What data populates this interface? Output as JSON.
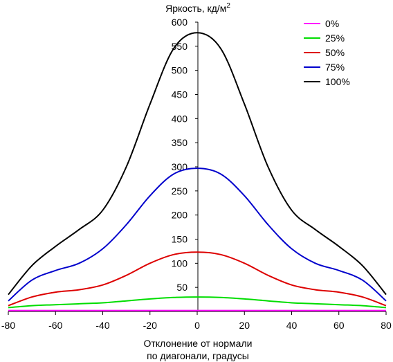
{
  "chart_data": {
    "type": "line",
    "title": "",
    "ylabel": "Яркость, кд/м",
    "ylabel_sup": "2",
    "xlabel_line1": "Отклонение от нормали",
    "xlabel_line2": "по диагонали, градусы",
    "xlim": [
      -80,
      80
    ],
    "ylim": [
      0,
      600
    ],
    "x_ticks": [
      -80,
      -60,
      -40,
      -20,
      0,
      20,
      40,
      60,
      80
    ],
    "y_ticks": [
      50,
      100,
      150,
      200,
      250,
      300,
      350,
      400,
      450,
      500,
      550,
      600
    ],
    "grid": false,
    "legend_position": "top-right",
    "x": [
      -80,
      -70,
      -60,
      -50,
      -40,
      -30,
      -20,
      -10,
      0,
      10,
      20,
      30,
      40,
      50,
      60,
      70,
      80
    ],
    "series": [
      {
        "name": "0%",
        "color": "#ff00ff",
        "values": [
          2,
          2,
          2,
          2,
          2,
          2,
          2,
          2,
          2,
          2,
          2,
          2,
          2,
          2,
          2,
          2,
          2
        ]
      },
      {
        "name": "25%",
        "color": "#00dd00",
        "values": [
          8,
          12,
          14,
          16,
          18,
          22,
          26,
          29,
          30,
          29,
          26,
          22,
          18,
          16,
          14,
          12,
          8
        ]
      },
      {
        "name": "50%",
        "color": "#dd0000",
        "values": [
          12,
          30,
          40,
          45,
          55,
          75,
          100,
          118,
          123,
          118,
          100,
          75,
          55,
          45,
          40,
          30,
          12
        ]
      },
      {
        "name": "75%",
        "color": "#0000cc",
        "values": [
          22,
          65,
          85,
          100,
          130,
          180,
          240,
          285,
          297,
          285,
          240,
          180,
          130,
          100,
          85,
          65,
          22
        ]
      },
      {
        "name": "100%",
        "color": "#000000",
        "values": [
          35,
          95,
          135,
          170,
          210,
          300,
          430,
          545,
          578,
          545,
          430,
          300,
          210,
          170,
          135,
          95,
          35
        ]
      }
    ]
  }
}
